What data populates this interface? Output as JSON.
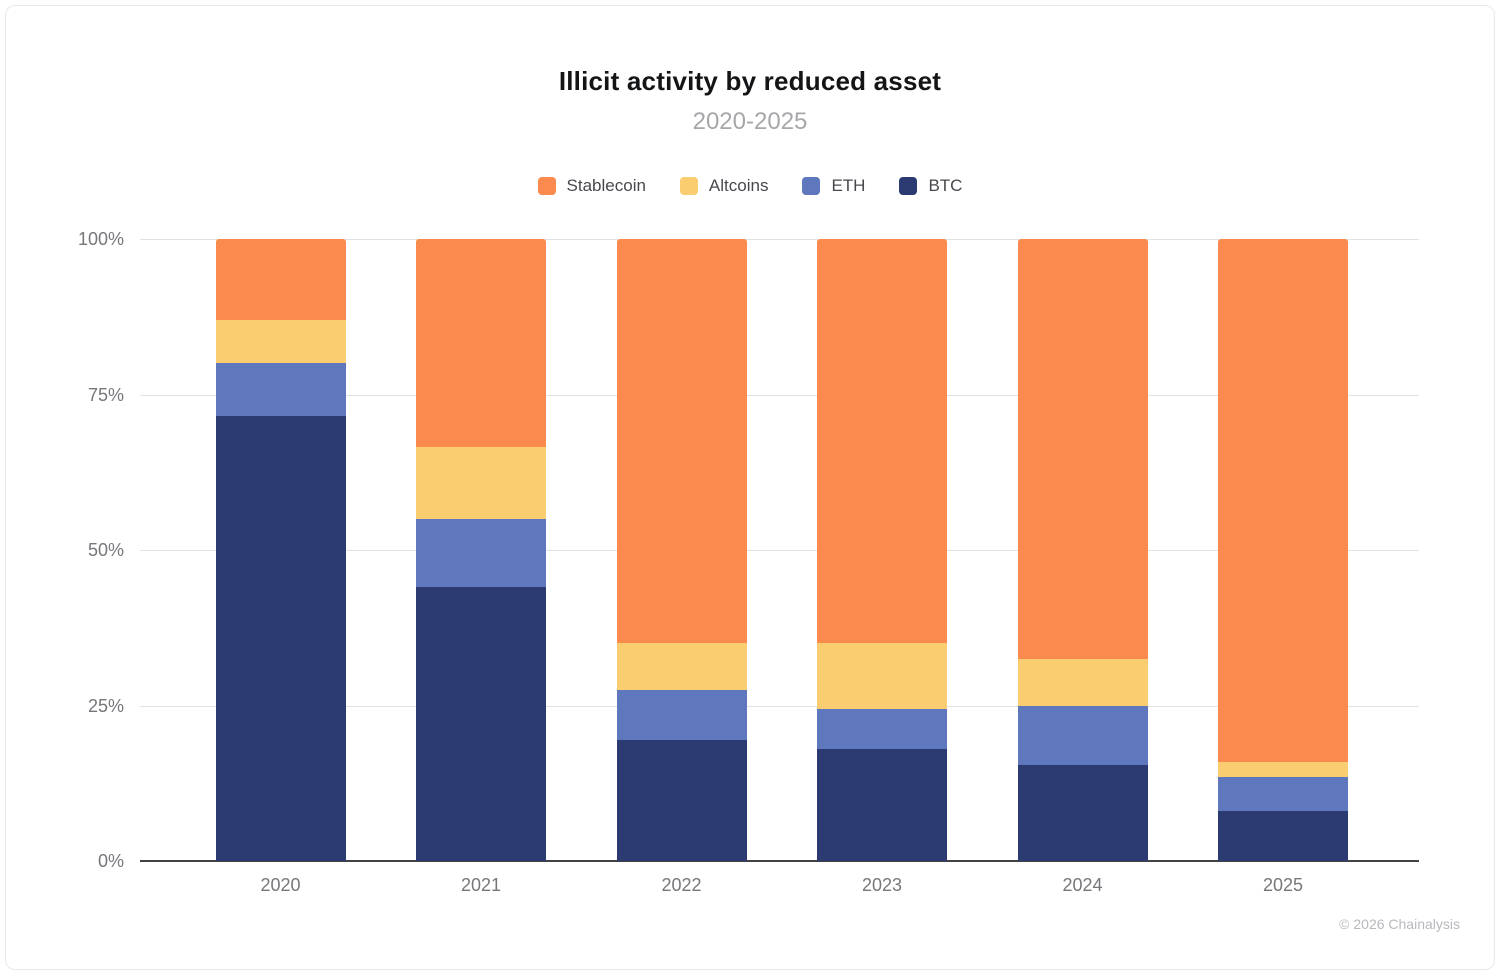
{
  "header": {
    "title": "Illicit activity by reduced asset",
    "subtitle": "2020-2025"
  },
  "footer": {
    "credit": "© 2026 Chainalysis"
  },
  "palette": {
    "stablecoin": "#FA8A4D",
    "altcoins": "#FACD70",
    "eth": "#5F77BC",
    "btc": "#2B3A70",
    "grid": "#E2E2E2",
    "axis": "#424242",
    "tick_text": "#76777B",
    "subtitle_text": "#A7A7AB",
    "footer_text": "#B8B9BD"
  },
  "chart_data": {
    "type": "bar",
    "variant": "stacked-percent",
    "title": "Illicit activity by reduced asset",
    "subtitle": "2020-2025",
    "categories": [
      "2020",
      "2021",
      "2022",
      "2023",
      "2024",
      "2025"
    ],
    "series": [
      {
        "name": "BTC",
        "color": "#2B3A70",
        "values": [
          71.5,
          44.0,
          19.5,
          18.0,
          15.5,
          8.0
        ]
      },
      {
        "name": "ETH",
        "color": "#5F77BC",
        "values": [
          8.5,
          11.0,
          8.0,
          6.5,
          9.5,
          5.5
        ]
      },
      {
        "name": "Altcoins",
        "color": "#FACD70",
        "values": [
          7.0,
          11.5,
          7.5,
          10.5,
          7.5,
          2.5
        ]
      },
      {
        "name": "Stablecoin",
        "color": "#FA8A4D",
        "values": [
          13.0,
          33.5,
          65.0,
          65.0,
          67.5,
          84.0
        ]
      }
    ],
    "legend_order": [
      "Stablecoin",
      "Altcoins",
      "ETH",
      "BTC"
    ],
    "legend_position": "top",
    "y_ticks": [
      "0%",
      "25%",
      "50%",
      "75%",
      "100%"
    ],
    "ylim": [
      0,
      100
    ],
    "xlabel": "",
    "ylabel": "",
    "grid": true
  }
}
